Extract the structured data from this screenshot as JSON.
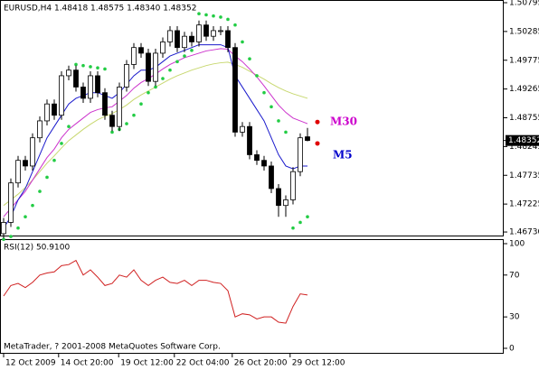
{
  "chart_data": [
    {
      "type": "candlestick",
      "title": "EURUSD,H4  1.48418 1.48575 1.48340 1.48352",
      "xlim": [
        -0.5,
        69.125
      ],
      "ylim": [
        1.46651,
        1.50843
      ],
      "yticks": [
        1.50795,
        1.50285,
        1.49775,
        1.49265,
        1.48755,
        1.48245,
        1.47735,
        1.47225,
        {
          "value": 1.4673,
          "label": "1.46730"
        }
      ],
      "last_price": 1.48352,
      "open": [
        1.467,
        1.469,
        1.476,
        1.48,
        1.479,
        1.484,
        1.487,
        1.49,
        1.488,
        1.495,
        1.496,
        1.493,
        1.491,
        1.495,
        1.492,
        1.488,
        1.486,
        1.493,
        1.497,
        1.5,
        1.499,
        1.494,
        1.499,
        1.501,
        1.503,
        1.5,
        1.502,
        1.501,
        1.504,
        1.502,
        1.503,
        1.503,
        1.5,
        1.485,
        1.486,
        1.481,
        1.48,
        1.479,
        1.475,
        1.472,
        1.473,
        1.478,
        1.48418
      ],
      "high": [
        1.4698,
        1.4768,
        1.4808,
        1.4808,
        1.4848,
        1.4878,
        1.4908,
        1.4908,
        1.4958,
        1.4968,
        1.4968,
        1.4938,
        1.4958,
        1.4958,
        1.4928,
        1.4888,
        1.4938,
        1.4978,
        1.5008,
        1.5008,
        1.4998,
        1.4998,
        1.5018,
        1.5038,
        1.5038,
        1.5028,
        1.5028,
        1.5048,
        1.5048,
        1.5038,
        1.5038,
        1.5038,
        1.5008,
        1.4868,
        1.4868,
        1.4818,
        1.4808,
        1.4798,
        1.4758,
        1.4738,
        1.4788,
        1.4848,
        1.48575
      ],
      "low": [
        1.4662,
        1.4682,
        1.4752,
        1.4782,
        1.4782,
        1.4832,
        1.4862,
        1.4872,
        1.4872,
        1.4942,
        1.4922,
        1.4902,
        1.4902,
        1.4912,
        1.4872,
        1.4852,
        1.4852,
        1.4922,
        1.4962,
        1.4982,
        1.4932,
        1.4932,
        1.4982,
        1.5002,
        1.4992,
        1.4992,
        1.5002,
        1.5002,
        1.5012,
        1.5012,
        1.5022,
        1.4992,
        1.4842,
        1.4842,
        1.4802,
        1.4792,
        1.4782,
        1.4742,
        1.47,
        1.47,
        1.4722,
        1.4772,
        1.4834
      ],
      "close": [
        1.469,
        1.476,
        1.48,
        1.479,
        1.484,
        1.487,
        1.49,
        1.488,
        1.495,
        1.496,
        1.493,
        1.491,
        1.495,
        1.492,
        1.488,
        1.486,
        1.493,
        1.497,
        1.5,
        1.499,
        1.494,
        1.499,
        1.501,
        1.503,
        1.5,
        1.502,
        1.501,
        1.504,
        1.502,
        1.503,
        1.503,
        1.5,
        1.485,
        1.486,
        1.481,
        1.48,
        1.479,
        1.475,
        1.472,
        1.473,
        1.478,
        1.484,
        1.48352
      ],
      "series": [
        {
          "style": "line",
          "color": "#c8d870",
          "values": [
            1.472,
            1.473,
            1.474,
            1.4752,
            1.4765,
            1.478,
            1.4795,
            1.4808,
            1.4822,
            1.4835,
            1.4845,
            1.4855,
            1.4864,
            1.4872,
            1.4878,
            1.4883,
            1.489,
            1.4898,
            1.4908,
            1.4916,
            1.4923,
            1.493,
            1.4937,
            1.4944,
            1.495,
            1.4955,
            1.496,
            1.4964,
            1.4968,
            1.4971,
            1.4973,
            1.4974,
            1.497,
            1.4965,
            1.4958,
            1.4951,
            1.4944,
            1.4936,
            1.4929,
            1.4923,
            1.4918,
            1.4914,
            1.491
          ]
        },
        {
          "style": "line",
          "color": "#cc33cc",
          "values": [
            1.47,
            1.4715,
            1.473,
            1.4745,
            1.4765,
            1.4785,
            1.4805,
            1.482,
            1.484,
            1.4855,
            1.4865,
            1.4875,
            1.4885,
            1.489,
            1.4893,
            1.4895,
            1.4905,
            1.4915,
            1.4928,
            1.4938,
            1.4945,
            1.4953,
            1.4962,
            1.497,
            1.4976,
            1.4982,
            1.4986,
            1.499,
            1.4994,
            1.4996,
            1.4998,
            1.4997,
            1.4985,
            1.4975,
            1.4962,
            1.4948,
            1.4932,
            1.4915,
            1.4898,
            1.4885,
            1.4875,
            1.487,
            1.4865
          ]
        },
        {
          "style": "line",
          "color": "#1a1acc",
          "values": [
            1.468,
            1.47,
            1.473,
            1.475,
            1.478,
            1.481,
            1.484,
            1.486,
            1.488,
            1.49,
            1.491,
            1.4915,
            1.492,
            1.492,
            1.4915,
            1.491,
            1.492,
            1.4935,
            1.495,
            1.496,
            1.496,
            1.4965,
            1.4975,
            1.4985,
            1.499,
            1.4995,
            1.5,
            1.5005,
            1.5005,
            1.5005,
            1.5005,
            1.5,
            1.495,
            1.493,
            1.491,
            1.489,
            1.487,
            1.484,
            1.481,
            1.479,
            1.4785,
            1.479,
            1.479
          ]
        },
        {
          "style": "dots",
          "color": "#22cc44",
          "values": [
            1.466,
            1.4665,
            1.468,
            1.47,
            1.472,
            1.4745,
            1.477,
            1.48,
            1.483,
            1.486,
            1.497,
            1.4968,
            1.4966,
            1.4964,
            1.4962,
            1.485,
            1.4855,
            1.4865,
            1.488,
            1.49,
            1.492,
            1.493,
            1.4945,
            1.496,
            1.4975,
            1.4985,
            1.4995,
            1.506,
            1.5058,
            1.5056,
            1.5054,
            1.505,
            1.504,
            1.501,
            1.498,
            1.495,
            1.492,
            1.4895,
            1.487,
            1.485,
            1.468,
            1.469,
            1.47
          ]
        }
      ],
      "annotations": [
        {
          "text": "M30",
          "color": "#cc00cc",
          "value": 1.4868
        },
        {
          "text": "M5",
          "color": "#0000cc",
          "value": 1.483
        }
      ]
    },
    {
      "type": "line",
      "title": "RSI(12) 50.9100",
      "note": "MetaTrader, ? 2001-2008 MetaQuotes Software Corp.",
      "xlim": [
        -0.5,
        69.125
      ],
      "ylim": [
        -5.2,
        104.3
      ],
      "yticks": [
        100,
        70,
        30,
        0
      ],
      "xticks": [
        {
          "value": 0,
          "label": "12 Oct 2009"
        },
        {
          "value": 7.6,
          "label": "14 Oct 20:00"
        },
        {
          "value": 15.9,
          "label": "19 Oct 12:00"
        },
        {
          "value": 23.6,
          "label": "22 Oct 04:00"
        },
        {
          "value": 31.6,
          "label": "26 Oct 20:00"
        },
        {
          "value": 39.6,
          "label": "29 Oct 12:00"
        }
      ],
      "series": [
        {
          "color": "#d02020",
          "values": [
            50,
            60,
            62,
            58,
            63,
            70,
            72,
            73,
            79,
            80,
            84,
            70,
            75,
            68,
            60,
            62,
            70,
            68,
            75,
            65,
            60,
            65,
            68,
            63,
            62,
            65,
            60,
            65,
            65,
            63,
            62,
            55,
            30,
            33,
            32,
            28,
            30,
            30,
            25,
            24,
            40,
            52,
            50.91
          ]
        }
      ]
    }
  ]
}
